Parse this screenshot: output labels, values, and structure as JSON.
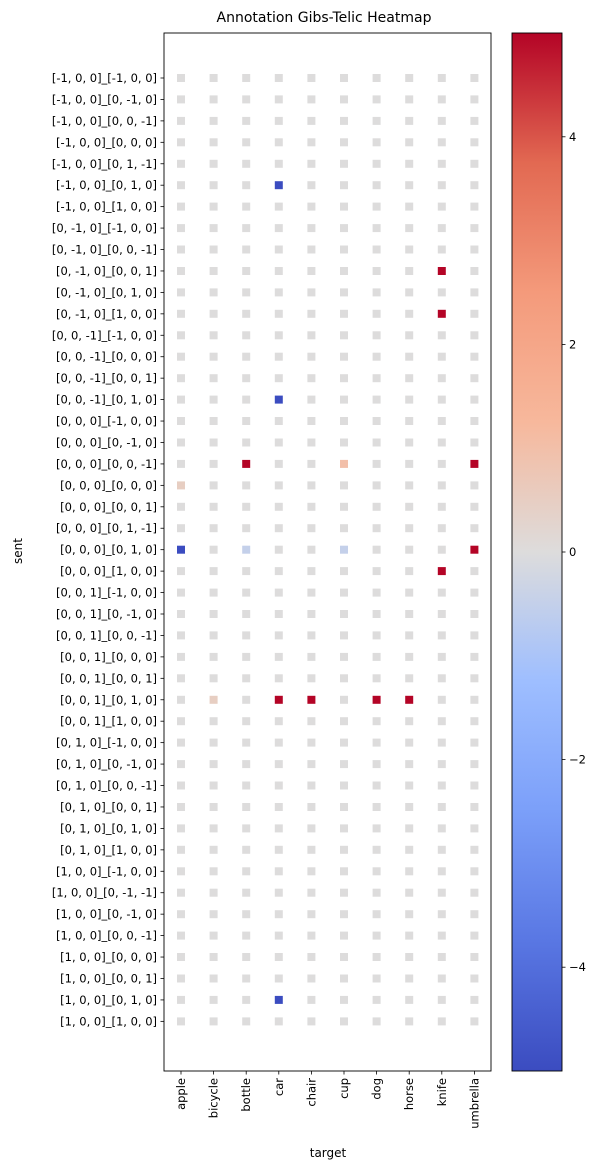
{
  "chart_data": {
    "type": "heatmap",
    "title": "Annotation Gibs-Telic Heatmap",
    "xlabel": "target",
    "ylabel": "sent",
    "x": [
      "apple",
      "bicycle",
      "bottle",
      "car",
      "chair",
      "cup",
      "dog",
      "horse",
      "knife",
      "umbrella"
    ],
    "y": [
      "[-1, 0, 0]_[-1, 0, 0]",
      "[-1, 0, 0]_[0, -1, 0]",
      "[-1, 0, 0]_[0, 0, -1]",
      "[-1, 0, 0]_[0, 0, 0]",
      "[-1, 0, 0]_[0, 1, -1]",
      "[-1, 0, 0]_[0, 1, 0]",
      "[-1, 0, 0]_[1, 0, 0]",
      "[0, -1, 0]_[-1, 0, 0]",
      "[0, -1, 0]_[0, 0, -1]",
      "[0, -1, 0]_[0, 0, 1]",
      "[0, -1, 0]_[0, 1, 0]",
      "[0, -1, 0]_[1, 0, 0]",
      "[0, 0, -1]_[-1, 0, 0]",
      "[0, 0, -1]_[0, 0, 0]",
      "[0, 0, -1]_[0, 0, 1]",
      "[0, 0, -1]_[0, 1, 0]",
      "[0, 0, 0]_[-1, 0, 0]",
      "[0, 0, 0]_[0, -1, 0]",
      "[0, 0, 0]_[0, 0, -1]",
      "[0, 0, 0]_[0, 0, 0]",
      "[0, 0, 0]_[0, 0, 1]",
      "[0, 0, 0]_[0, 1, -1]",
      "[0, 0, 0]_[0, 1, 0]",
      "[0, 0, 0]_[1, 0, 0]",
      "[0, 0, 1]_[-1, 0, 0]",
      "[0, 0, 1]_[0, -1, 0]",
      "[0, 0, 1]_[0, 0, -1]",
      "[0, 0, 1]_[0, 0, 0]",
      "[0, 0, 1]_[0, 0, 1]",
      "[0, 0, 1]_[0, 1, 0]",
      "[0, 0, 1]_[1, 0, 0]",
      "[0, 1, 0]_[-1, 0, 0]",
      "[0, 1, 0]_[0, -1, 0]",
      "[0, 1, 0]_[0, 0, -1]",
      "[0, 1, 0]_[0, 0, 1]",
      "[0, 1, 0]_[0, 1, 0]",
      "[0, 1, 0]_[1, 0, 0]",
      "[1, 0, 0]_[-1, 0, 0]",
      "[1, 0, 0]_[0, -1, -1]",
      "[1, 0, 0]_[0, -1, 0]",
      "[1, 0, 0]_[0, 0, -1]",
      "[1, 0, 0]_[0, 0, 0]",
      "[1, 0, 0]_[0, 0, 1]",
      "[1, 0, 0]_[0, 1, 0]",
      "[1, 0, 0]_[1, 0, 0]"
    ],
    "values": [
      [
        0,
        0,
        0,
        0,
        0,
        0,
        0,
        0,
        0,
        0
      ],
      [
        0,
        0,
        0,
        0,
        0,
        0,
        0,
        0,
        0,
        0
      ],
      [
        0,
        0,
        0,
        0,
        0,
        0,
        0,
        0,
        0,
        0
      ],
      [
        0,
        0,
        0,
        0,
        0,
        0,
        0,
        0,
        0,
        0
      ],
      [
        0,
        0,
        0,
        0,
        0,
        0,
        0,
        0,
        0,
        0
      ],
      [
        0,
        0,
        0,
        -5,
        0,
        0,
        0,
        0,
        0,
        0
      ],
      [
        0,
        0,
        0,
        0,
        0,
        0,
        0,
        0,
        0,
        0
      ],
      [
        0,
        0,
        0,
        0,
        0,
        0,
        0,
        0,
        0,
        0
      ],
      [
        0,
        0,
        0,
        0,
        0,
        0,
        0,
        0,
        0,
        0
      ],
      [
        0,
        0,
        0,
        0,
        0,
        0,
        0,
        0,
        5,
        0
      ],
      [
        0,
        0,
        0,
        0,
        0,
        0,
        0,
        0,
        0,
        0
      ],
      [
        0,
        0,
        0,
        0,
        0,
        0,
        0,
        0,
        5,
        0
      ],
      [
        0,
        0,
        0,
        0,
        0,
        0,
        0,
        0,
        0,
        0
      ],
      [
        0,
        0,
        0,
        0,
        0,
        0,
        0,
        0,
        0,
        0
      ],
      [
        0,
        0,
        0,
        0,
        0,
        0,
        0,
        0,
        0,
        0
      ],
      [
        0,
        0,
        0,
        -5,
        0,
        0,
        0,
        0,
        0,
        0
      ],
      [
        0,
        0,
        0,
        0,
        0,
        0,
        0,
        0,
        0,
        0
      ],
      [
        0,
        0,
        0,
        0,
        0,
        0,
        0,
        0,
        0,
        0
      ],
      [
        0,
        0,
        5,
        0,
        0,
        1,
        0,
        0,
        0,
        5
      ],
      [
        0.5,
        0,
        0,
        0,
        0,
        0,
        0,
        0,
        0,
        0
      ],
      [
        0,
        0,
        0,
        0,
        0,
        0,
        0,
        0,
        0,
        0
      ],
      [
        0,
        0,
        0,
        0,
        0,
        0,
        0,
        0,
        0,
        0
      ],
      [
        -5,
        0,
        -0.5,
        0,
        0,
        -0.5,
        0,
        0,
        0,
        5
      ],
      [
        0,
        0,
        0,
        0,
        0,
        0,
        0,
        0,
        5,
        0
      ],
      [
        0,
        0,
        0,
        0,
        0,
        0,
        0,
        0,
        0,
        0
      ],
      [
        0,
        0,
        0,
        0,
        0,
        0,
        0,
        0,
        0,
        0
      ],
      [
        0,
        0,
        0,
        0,
        0,
        0,
        0,
        0,
        0,
        0
      ],
      [
        0,
        0,
        0,
        0,
        0,
        0,
        0,
        0,
        0,
        0
      ],
      [
        0,
        0,
        0,
        0,
        0,
        0,
        0,
        0,
        0,
        0
      ],
      [
        0,
        0.5,
        0,
        5,
        5,
        0,
        5,
        5,
        0,
        0
      ],
      [
        0,
        0,
        0,
        0,
        0,
        0,
        0,
        0,
        0,
        0
      ],
      [
        0,
        0,
        0,
        0,
        0,
        0,
        0,
        0,
        0,
        0
      ],
      [
        0,
        0,
        0,
        0,
        0,
        0,
        0,
        0,
        0,
        0
      ],
      [
        0,
        0,
        0,
        0,
        0,
        0,
        0,
        0,
        0,
        0
      ],
      [
        0,
        0,
        0,
        0,
        0,
        0,
        0,
        0,
        0,
        0
      ],
      [
        0,
        0,
        0,
        0,
        0,
        0,
        0,
        0,
        0,
        0
      ],
      [
        0,
        0,
        0,
        0,
        0,
        0,
        0,
        0,
        0,
        0
      ],
      [
        0,
        0,
        0,
        0,
        0,
        0,
        0,
        0,
        0,
        0
      ],
      [
        0,
        0,
        0,
        0,
        0,
        0,
        0,
        0,
        0,
        0
      ],
      [
        0,
        0,
        0,
        0,
        0,
        0,
        0,
        0,
        0,
        0
      ],
      [
        0,
        0,
        0,
        0,
        0,
        0,
        0,
        0,
        0,
        0
      ],
      [
        0,
        0,
        0,
        0,
        0,
        0,
        0,
        0,
        0,
        0
      ],
      [
        0,
        0,
        0,
        0,
        0,
        0,
        0,
        0,
        0,
        0
      ],
      [
        0,
        0,
        0,
        -5,
        0,
        0,
        0,
        0,
        0,
        0
      ],
      [
        0,
        0,
        0,
        0,
        0,
        0,
        0,
        0,
        0,
        0
      ]
    ],
    "colormap": "coolwarm",
    "vmin": -5,
    "vmax": 5,
    "colorbar_ticks": [
      -4,
      -2,
      0,
      2,
      4
    ],
    "colorbar_tick_labels": [
      "−4",
      "−2",
      "0",
      "2",
      "4"
    ]
  }
}
